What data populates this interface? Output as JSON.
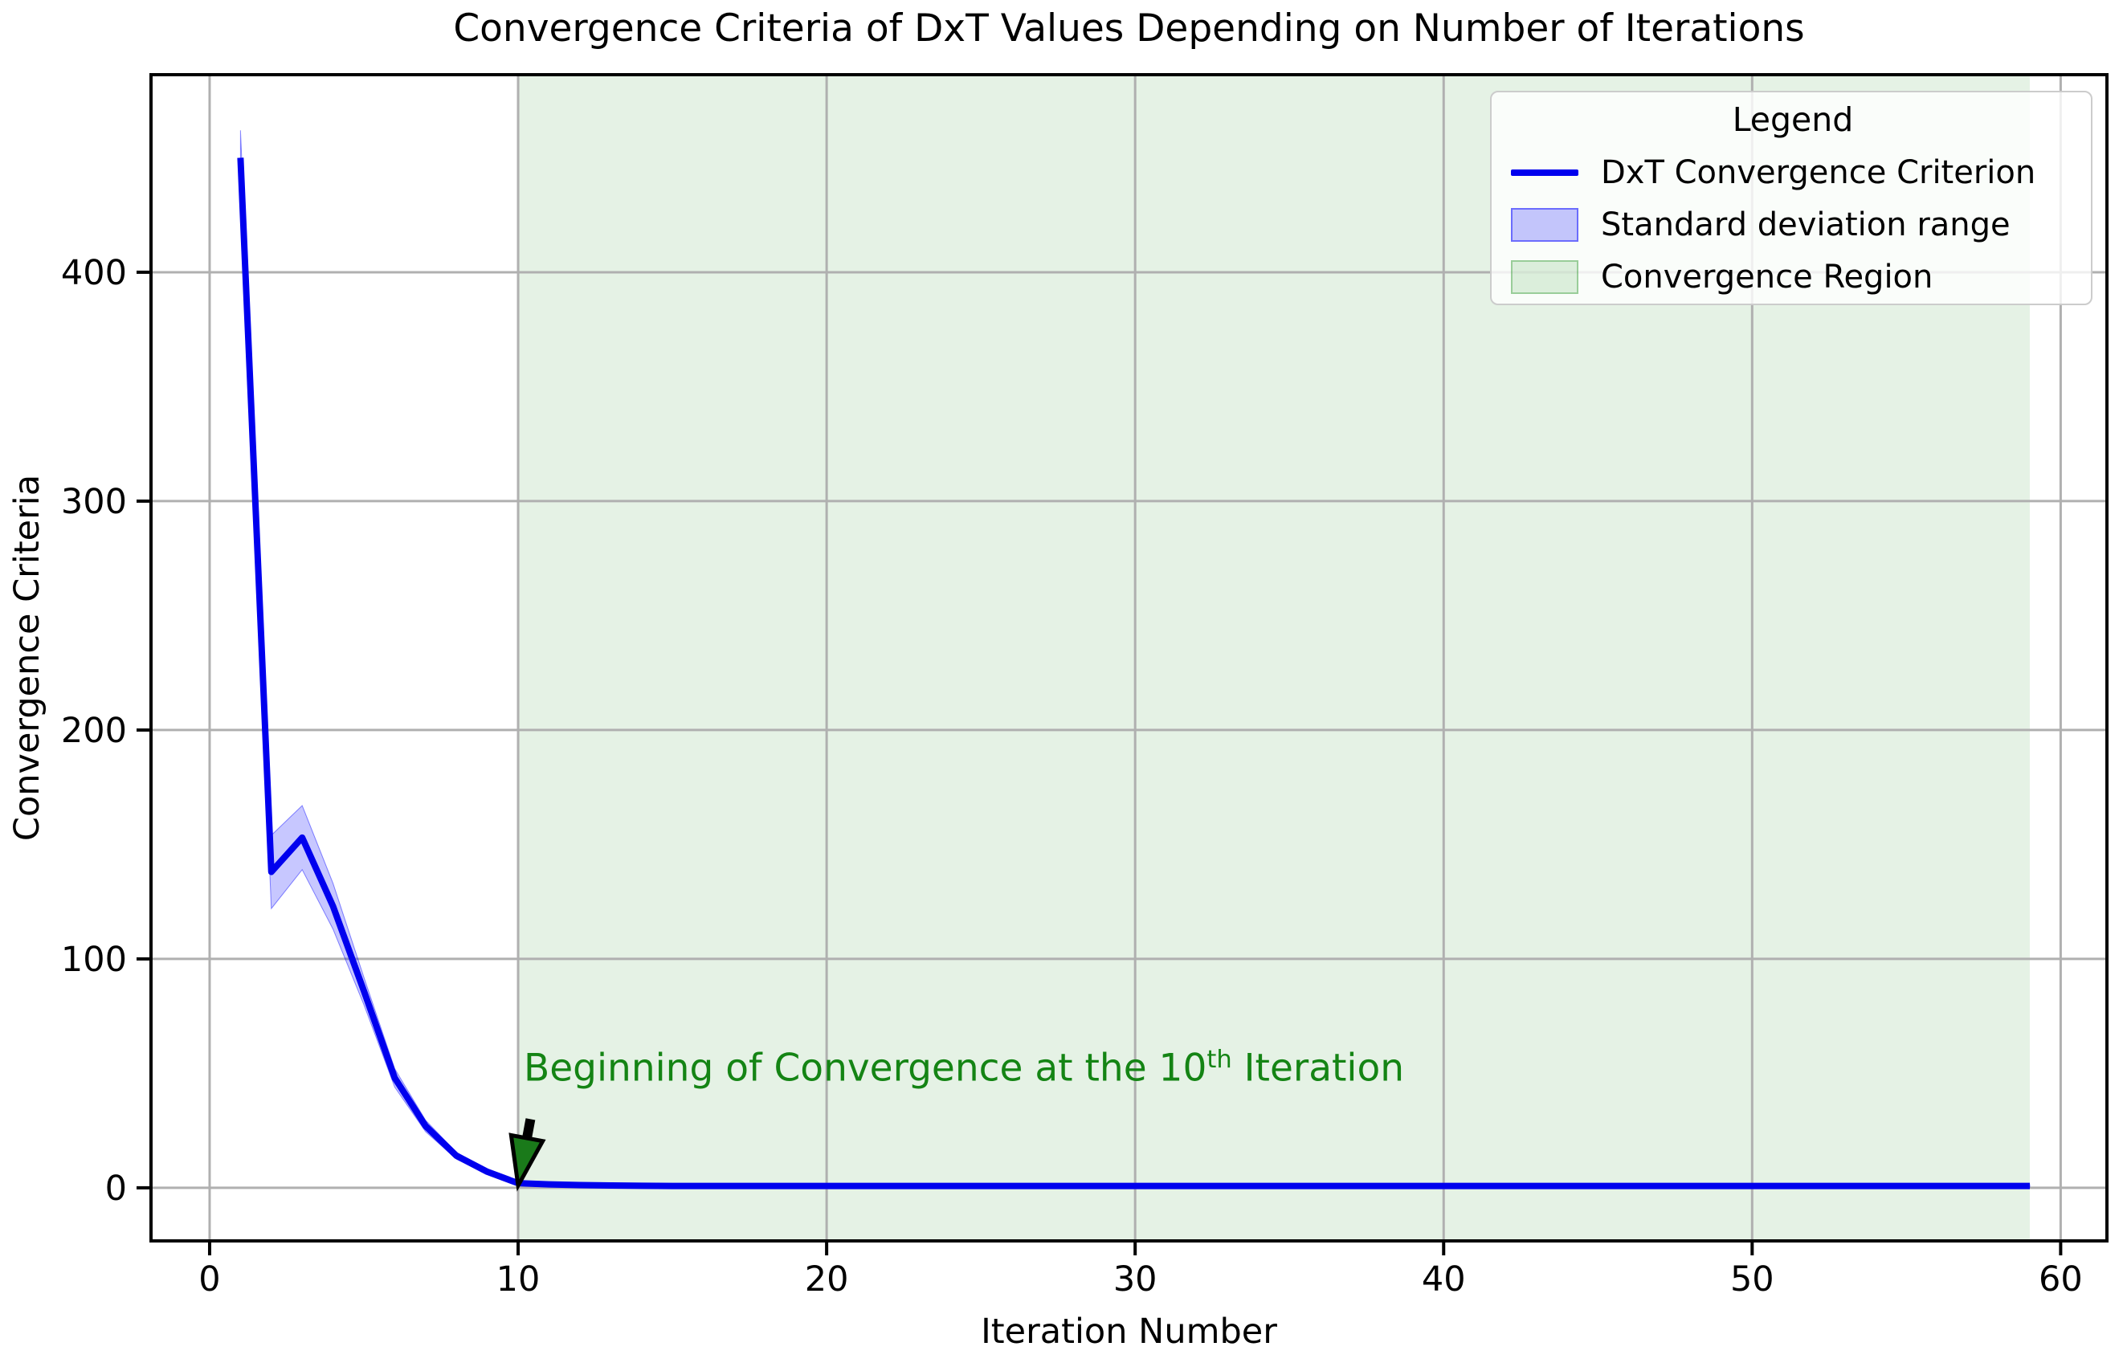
{
  "chart_data": {
    "type": "line",
    "title": "Convergence Criteria of DxT Values Depending on Number of Iterations",
    "xlabel": "Iteration Number",
    "ylabel": "Convergence Criteria",
    "x_ticks": [
      0,
      10,
      20,
      30,
      40,
      50,
      60
    ],
    "y_ticks": [
      0,
      100,
      200,
      300,
      400
    ],
    "xlim": [
      -1.9,
      61.5
    ],
    "ylim": [
      -23.2,
      486.3
    ],
    "grid": true,
    "grid_color": "#b0b0b0",
    "background_color": "#ffffff",
    "legend": {
      "title": "Legend",
      "position": "upper right",
      "entries": [
        {
          "label": "DxT Convergence Criterion",
          "type": "line",
          "color": "#0000ee"
        },
        {
          "label": "Standard deviation range",
          "type": "patch",
          "fill": "rgba(0,0,255,0.22)",
          "edge": "rgba(0,0,255,0.45)"
        },
        {
          "label": "Convergence Region",
          "type": "patch",
          "fill": "rgba(0,128,0,0.12)",
          "edge": "rgba(0,128,0,0.30)"
        }
      ]
    },
    "convergence_region": {
      "x_start": 10,
      "x_end": 59,
      "fill": "rgba(0,128,0,0.10)"
    },
    "series": [
      {
        "name": "DxT Convergence Criterion",
        "color": "#0000ee",
        "x": [
          1,
          2,
          3,
          4,
          5,
          6,
          7,
          8,
          9,
          10,
          11,
          12,
          13,
          14,
          15,
          16,
          17,
          18,
          19,
          20,
          21,
          22,
          23,
          24,
          25,
          26,
          27,
          28,
          29,
          30,
          31,
          32,
          33,
          34,
          35,
          36,
          37,
          38,
          39,
          40,
          41,
          42,
          43,
          44,
          45,
          46,
          47,
          48,
          49,
          50,
          51,
          52,
          53,
          54,
          55,
          56,
          57,
          58,
          59
        ],
        "y": [
          450,
          138,
          153,
          123,
          86,
          48,
          27,
          14,
          7,
          2,
          1.5,
          1.2,
          1,
          0.9,
          0.8,
          0.8,
          0.8,
          0.8,
          0.8,
          0.8,
          0.8,
          0.8,
          0.8,
          0.8,
          0.8,
          0.8,
          0.8,
          0.8,
          0.8,
          0.8,
          0.8,
          0.8,
          0.8,
          0.8,
          0.8,
          0.8,
          0.8,
          0.8,
          0.8,
          0.8,
          0.8,
          0.8,
          0.8,
          0.8,
          0.8,
          0.8,
          0.8,
          0.8,
          0.8,
          0.8,
          0.8,
          0.8,
          0.8,
          0.8,
          0.8,
          0.8,
          0.8,
          0.8,
          0.8
        ],
        "std": [
          12,
          16,
          14,
          10,
          6,
          4,
          2.5,
          1.5,
          1,
          0.8,
          0.5,
          0.5,
          0.5,
          0.5,
          0.5,
          0.5,
          0.5,
          0.5,
          0.5,
          0.5,
          0.5,
          0.5,
          0.5,
          0.5,
          0.5,
          0.5,
          0.5,
          0.5,
          0.5,
          0.5,
          0.5,
          0.5,
          0.5,
          0.5,
          0.5,
          0.5,
          0.5,
          0.5,
          0.5,
          0.5,
          0.5,
          0.5,
          0.5,
          0.5,
          0.5,
          0.5,
          0.5,
          0.5,
          0.5,
          0.5,
          0.5,
          0.5,
          0.5,
          0.5,
          0.5,
          0.5,
          0.5,
          0.5,
          0.5
        ]
      }
    ],
    "annotation": {
      "text_prefix": "Beginning of Convergence at the 10",
      "text_sup": "th",
      "text_suffix": " Iteration",
      "color": "#148414",
      "arrow": {
        "tip_x": 10,
        "tip_y": 1,
        "tail_x": 10.4,
        "tail_y": 30,
        "fill": "#1a7a1a",
        "edge": "#000000"
      }
    }
  }
}
